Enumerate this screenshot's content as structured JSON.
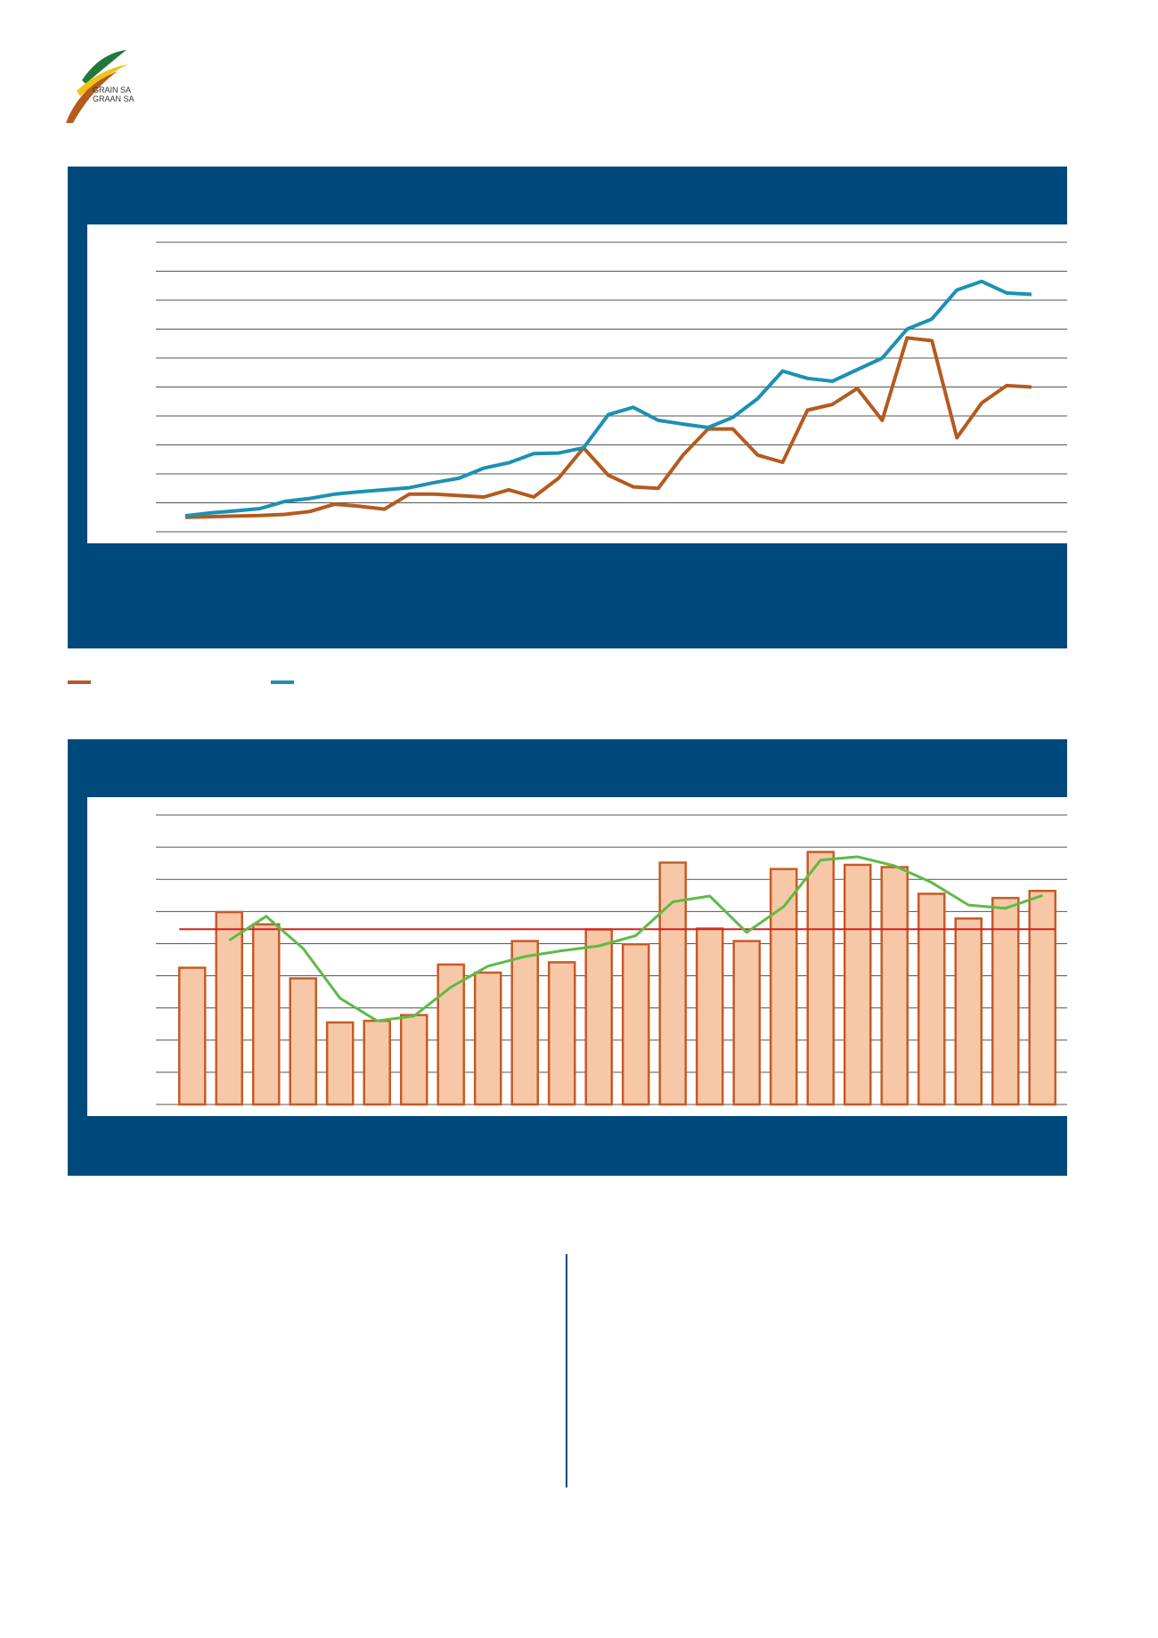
{
  "logo": {
    "line1": "GRAIN SA",
    "line2": "GRAAN SA",
    "colors": {
      "green": "#1f7a3a",
      "yellow": "#f3c11b",
      "brown": "#b35c1e"
    }
  },
  "colors": {
    "panel": "#00497c",
    "series_orange": "#b55a1e",
    "series_blue": "#1b91b3",
    "bar_fill": "#f6c8a8",
    "bar_stroke": "#c75b26",
    "trend_green": "#5dbb46",
    "avg_red": "#d42020",
    "grid": "#555555"
  },
  "chart_data": [
    {
      "type": "line",
      "title": "",
      "xlabel": "",
      "ylabel": "",
      "ylim": [
        0,
        10
      ],
      "gridlines": 11,
      "legend": "bottom-left",
      "series": [
        {
          "color": "#b55a1e",
          "values": [
            0.5,
            0.52,
            0.54,
            0.56,
            0.6,
            0.7,
            0.95,
            0.88,
            0.78,
            1.3,
            1.3,
            1.25,
            1.2,
            1.45,
            1.2,
            1.85,
            2.9,
            1.95,
            1.55,
            1.5,
            2.65,
            3.55,
            3.55,
            2.65,
            2.4,
            4.2,
            4.4,
            4.95,
            3.85,
            6.7,
            6.6,
            3.25,
            4.45,
            5.05,
            5.0
          ]
        },
        {
          "color": "#1b91b3",
          "values": [
            0.55,
            0.65,
            0.72,
            0.8,
            1.05,
            1.15,
            1.3,
            1.38,
            1.45,
            1.52,
            1.7,
            1.85,
            2.2,
            2.38,
            2.7,
            2.72,
            2.9,
            4.05,
            4.3,
            3.85,
            3.72,
            3.6,
            3.95,
            4.6,
            5.55,
            5.3,
            5.2,
            5.6,
            6.0,
            7.0,
            7.35,
            8.35,
            8.65,
            8.25,
            8.2
          ]
        }
      ]
    },
    {
      "type": "bar",
      "title": "",
      "xlabel": "",
      "ylabel": "",
      "ylim": [
        0,
        9
      ],
      "gridlines": 10,
      "values": [
        4.25,
        5.98,
        5.6,
        3.92,
        2.55,
        2.6,
        2.78,
        4.35,
        4.1,
        5.08,
        4.42,
        5.44,
        4.98,
        7.52,
        5.47,
        5.08,
        7.32,
        7.85,
        7.45,
        7.38,
        6.55,
        5.78,
        6.42,
        6.64
      ],
      "average": 5.45,
      "trend": [
        null,
        5.1,
        5.85,
        4.85,
        3.3,
        2.6,
        2.75,
        3.65,
        4.3,
        4.6,
        4.78,
        4.93,
        5.25,
        6.3,
        6.48,
        5.35,
        6.15,
        7.6,
        7.7,
        7.42,
        6.9,
        6.2,
        6.1,
        6.5
      ]
    }
  ]
}
